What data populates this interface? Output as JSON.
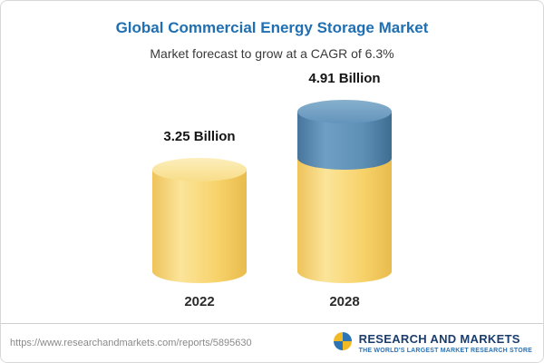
{
  "header": {
    "title": "Global Commercial Energy Storage Market",
    "subtitle": "Market forecast to grow at a CAGR of 6.3%"
  },
  "chart_data": {
    "type": "bar",
    "title": "Global Commercial Energy Storage Market",
    "subtitle": "Market forecast to grow at a CAGR of 6.3%",
    "categories": [
      "2022",
      "2028"
    ],
    "values": [
      3.25,
      4.91
    ],
    "unit": "Billion",
    "value_labels": [
      "3.25 Billion",
      "4.91 Billion"
    ],
    "ylim": [
      0,
      5
    ],
    "grid": false,
    "legend": false,
    "bar_colors": {
      "base_segment": "#f7d269",
      "growth_segment": "#5d8fb5"
    }
  },
  "footer": {
    "url": "https://www.researchandmarkets.com/reports/5895630",
    "logo_name": "RESEARCH AND MARKETS",
    "logo_tagline": "THE WORLD'S LARGEST MARKET RESEARCH STORE",
    "logo_colors": {
      "navy": "#1b3d6e",
      "blue": "#2d74b5",
      "gold": "#f2b927"
    }
  }
}
